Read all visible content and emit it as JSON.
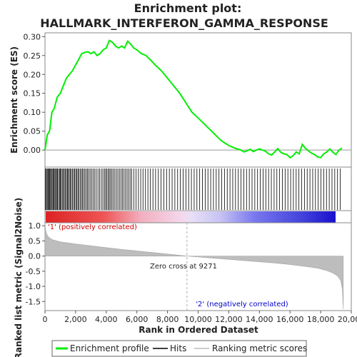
{
  "chart_data": {
    "type": "line",
    "title_line1": "Enrichment plot:",
    "title_line2": "HALLMARK_INTERFERON_GAMMA_RESPONSE",
    "es_panel": {
      "ylabel": "Enrichment score (ES)",
      "ylim": [
        -0.045,
        0.31
      ],
      "yticks": [
        "0.00",
        "0.05",
        "0.10",
        "0.15",
        "0.20",
        "0.25",
        "0.30"
      ],
      "ytick_values": [
        0.0,
        0.05,
        0.1,
        0.15,
        0.2,
        0.25,
        0.3
      ],
      "series": {
        "name": "Enrichment profile",
        "color": "#00ee00",
        "x": [
          0,
          150,
          300,
          450,
          600,
          800,
          1000,
          1200,
          1400,
          1600,
          1800,
          2000,
          2200,
          2400,
          2600,
          2800,
          3000,
          3200,
          3400,
          3600,
          3800,
          4000,
          4200,
          4400,
          4600,
          4800,
          5000,
          5200,
          5400,
          5600,
          5800,
          6000,
          6300,
          6600,
          6900,
          7200,
          7600,
          8000,
          8400,
          8800,
          9200,
          9600,
          10000,
          10500,
          11000,
          11500,
          12000,
          12400,
          12800,
          13000,
          13200,
          13400,
          13600,
          13800,
          14000,
          14200,
          14400,
          14600,
          14800,
          15000,
          15200,
          15400,
          15600,
          15800,
          16000,
          16200,
          16400,
          16600,
          16800,
          17000,
          17200,
          17400,
          17600,
          17800,
          18000,
          18200,
          18400,
          18600,
          18800,
          19000,
          19200,
          19400
        ],
        "y": [
          0.0,
          0.04,
          0.05,
          0.1,
          0.11,
          0.14,
          0.15,
          0.17,
          0.19,
          0.2,
          0.21,
          0.225,
          0.24,
          0.255,
          0.258,
          0.26,
          0.255,
          0.26,
          0.25,
          0.255,
          0.265,
          0.27,
          0.29,
          0.285,
          0.275,
          0.27,
          0.275,
          0.27,
          0.288,
          0.28,
          0.27,
          0.265,
          0.255,
          0.25,
          0.238,
          0.225,
          0.21,
          0.19,
          0.17,
          0.15,
          0.125,
          0.1,
          0.085,
          0.065,
          0.045,
          0.025,
          0.012,
          0.005,
          0.0,
          -0.005,
          -0.002,
          0.002,
          -0.004,
          0.0,
          0.003,
          0.0,
          -0.003,
          -0.01,
          -0.013,
          -0.005,
          0.004,
          -0.006,
          -0.01,
          -0.012,
          -0.02,
          -0.015,
          -0.005,
          -0.01,
          0.015,
          0.005,
          -0.002,
          -0.008,
          -0.012,
          -0.018,
          -0.02,
          -0.01,
          -0.005,
          0.003,
          -0.006,
          -0.012,
          0.0,
          0.005
        ]
      },
      "hits": [
        40,
        90,
        150,
        200,
        260,
        310,
        360,
        420,
        470,
        540,
        590,
        650,
        700,
        760,
        820,
        880,
        950,
        1000,
        1060,
        1130,
        1200,
        1260,
        1330,
        1400,
        1460,
        1520,
        1590,
        1650,
        1720,
        1800,
        1870,
        1940,
        2010,
        2080,
        2150,
        2220,
        2300,
        2380,
        2450,
        2530,
        2610,
        2700,
        2780,
        2860,
        2950,
        3050,
        3150,
        3250,
        3350,
        3460,
        3570,
        3680,
        3780,
        3880,
        3960,
        4040,
        4120,
        4200,
        4280,
        4370,
        4460,
        4560,
        4660,
        4760,
        4860,
        4960,
        5060,
        5160,
        5260,
        5360,
        5460,
        5560,
        5660,
        5800,
        5950,
        6100,
        6250,
        6400,
        6560,
        6720,
        6880,
        7050,
        7220,
        7400,
        7580,
        7760,
        7940,
        8120,
        8300,
        8480,
        8660,
        8840,
        9020,
        9200,
        9380,
        9560,
        9740,
        9920,
        10100,
        10280,
        10460,
        10640,
        10820,
        11000,
        11180,
        11360,
        11540,
        11720,
        11900,
        12080,
        12260,
        12440,
        12620,
        12800,
        12980,
        13160,
        13340,
        13520,
        13700,
        13880,
        14060,
        14240,
        14420,
        14600,
        14780,
        14960,
        15140,
        15320,
        15500,
        15680,
        15860,
        16040,
        16220,
        16400,
        16580,
        16760,
        16940,
        17120,
        17300,
        17480,
        17660,
        17840,
        18020,
        18200,
        18380,
        18560,
        18740,
        18920,
        19100,
        19280
      ]
    },
    "rank_panel": {
      "ylabel": "Ranked list metric (Signal2Noise)",
      "xlabel": "Rank in Ordered Dataset",
      "ylim": [
        -1.8,
        1.1
      ],
      "yticks": [
        "1.0",
        "0.5",
        "0.0",
        "-0.5",
        "-1.0",
        "-1.5"
      ],
      "ytick_values": [
        1.0,
        0.5,
        0.0,
        -0.5,
        -1.0,
        -1.5
      ],
      "xlim": [
        0,
        20000
      ],
      "xticks": [
        "0",
        "2,000",
        "4,000",
        "6,000",
        "8,000",
        "10,000",
        "12,000",
        "14,000",
        "16,000",
        "18,000",
        "20,000"
      ],
      "xtick_values": [
        0,
        2000,
        4000,
        6000,
        8000,
        10000,
        12000,
        14000,
        16000,
        18000,
        20000
      ],
      "metric_x": [
        0,
        20,
        60,
        120,
        250,
        500,
        1000,
        2000,
        3000,
        4000,
        5000,
        6000,
        7000,
        8000,
        9271,
        10000,
        11000,
        12000,
        13000,
        14000,
        15000,
        16000,
        17000,
        17800,
        18400,
        18800,
        19100,
        19300,
        19420,
        19480
      ],
      "metric_y": [
        1.1,
        0.95,
        0.82,
        0.72,
        0.62,
        0.54,
        0.47,
        0.4,
        0.34,
        0.28,
        0.22,
        0.17,
        0.12,
        0.07,
        0.0,
        -0.03,
        -0.07,
        -0.11,
        -0.15,
        -0.19,
        -0.23,
        -0.28,
        -0.34,
        -0.4,
        -0.48,
        -0.56,
        -0.66,
        -0.8,
        -1.1,
        -1.75
      ],
      "zero_cross_label": "Zero cross at 9271",
      "zero_cross": 9271,
      "pos_label": "'1' (positively correlated)",
      "neg_label": "'2' (negatively correlated)",
      "pos_color": "#cc0000",
      "neg_color": "#0000cc"
    },
    "total_ranks": 19480,
    "legend": {
      "entries": [
        "Enrichment profile",
        "Hits",
        "Ranking metric scores"
      ],
      "position": "bottom"
    }
  }
}
